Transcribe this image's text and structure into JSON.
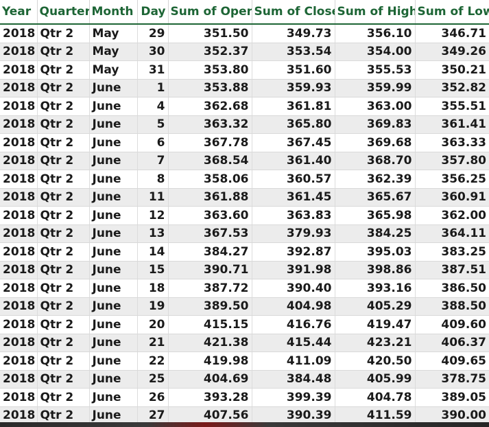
{
  "table": {
    "headers": [
      "Year",
      "Quarter",
      "Month",
      "Day",
      "Sum of Open",
      "Sum of Close",
      "Sum of High",
      "Sum of Low"
    ],
    "rows": [
      [
        "2018",
        "Qtr 2",
        "May",
        "29",
        "351.50",
        "349.73",
        "356.10",
        "346.71"
      ],
      [
        "2018",
        "Qtr 2",
        "May",
        "30",
        "352.37",
        "353.54",
        "354.00",
        "349.26"
      ],
      [
        "2018",
        "Qtr 2",
        "May",
        "31",
        "353.80",
        "351.60",
        "355.53",
        "350.21"
      ],
      [
        "2018",
        "Qtr 2",
        "June",
        "1",
        "353.88",
        "359.93",
        "359.99",
        "352.82"
      ],
      [
        "2018",
        "Qtr 2",
        "June",
        "4",
        "362.68",
        "361.81",
        "363.00",
        "355.51"
      ],
      [
        "2018",
        "Qtr 2",
        "June",
        "5",
        "363.32",
        "365.80",
        "369.83",
        "361.41"
      ],
      [
        "2018",
        "Qtr 2",
        "June",
        "6",
        "367.78",
        "367.45",
        "369.68",
        "363.33"
      ],
      [
        "2018",
        "Qtr 2",
        "June",
        "7",
        "368.54",
        "361.40",
        "368.70",
        "357.80"
      ],
      [
        "2018",
        "Qtr 2",
        "June",
        "8",
        "358.06",
        "360.57",
        "362.39",
        "356.25"
      ],
      [
        "2018",
        "Qtr 2",
        "June",
        "11",
        "361.88",
        "361.45",
        "365.67",
        "360.91"
      ],
      [
        "2018",
        "Qtr 2",
        "June",
        "12",
        "363.60",
        "363.83",
        "365.98",
        "362.00"
      ],
      [
        "2018",
        "Qtr 2",
        "June",
        "13",
        "367.53",
        "379.93",
        "384.25",
        "364.11"
      ],
      [
        "2018",
        "Qtr 2",
        "June",
        "14",
        "384.27",
        "392.87",
        "395.03",
        "383.25"
      ],
      [
        "2018",
        "Qtr 2",
        "June",
        "15",
        "390.71",
        "391.98",
        "398.86",
        "387.51"
      ],
      [
        "2018",
        "Qtr 2",
        "June",
        "18",
        "387.72",
        "390.40",
        "393.16",
        "386.50"
      ],
      [
        "2018",
        "Qtr 2",
        "June",
        "19",
        "389.50",
        "404.98",
        "405.29",
        "388.50"
      ],
      [
        "2018",
        "Qtr 2",
        "June",
        "20",
        "415.15",
        "416.76",
        "419.47",
        "409.60"
      ],
      [
        "2018",
        "Qtr 2",
        "June",
        "21",
        "421.38",
        "415.44",
        "423.21",
        "406.37"
      ],
      [
        "2018",
        "Qtr 2",
        "June",
        "22",
        "419.98",
        "411.09",
        "420.50",
        "409.65"
      ],
      [
        "2018",
        "Qtr 2",
        "June",
        "25",
        "404.69",
        "384.48",
        "405.99",
        "378.75"
      ],
      [
        "2018",
        "Qtr 2",
        "June",
        "26",
        "393.28",
        "399.39",
        "404.78",
        "389.05"
      ],
      [
        "2018",
        "Qtr 2",
        "June",
        "27",
        "407.56",
        "390.39",
        "411.59",
        "390.00"
      ]
    ]
  },
  "colors": {
    "header_text": "#1d6535",
    "row_alt": "#ececec"
  }
}
